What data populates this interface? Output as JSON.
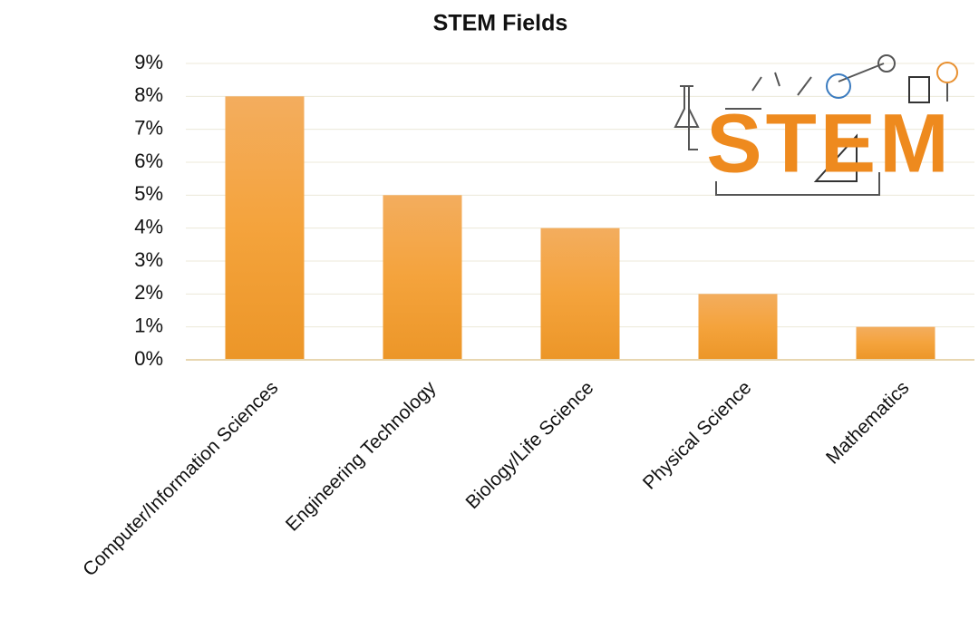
{
  "chart_data": {
    "type": "bar",
    "title": "STEM Fields",
    "categories": [
      "Computer/Information Sciences",
      "Engineering Technology",
      "Biology/Life Science",
      "Physical Science",
      "Mathematics"
    ],
    "values": [
      8,
      5,
      4,
      2,
      1
    ],
    "color": "#f0a03a",
    "ylim": [
      0,
      9
    ],
    "yticks": [
      {
        "value": 0,
        "label": "0%"
      },
      {
        "value": 1,
        "label": "1%"
      },
      {
        "value": 2,
        "label": "2%"
      },
      {
        "value": 3,
        "label": "3%"
      },
      {
        "value": 4,
        "label": "4%"
      },
      {
        "value": 5,
        "label": "5%"
      },
      {
        "value": 6,
        "label": "6%"
      },
      {
        "value": 7,
        "label": "7%"
      },
      {
        "value": 8,
        "label": "8%"
      },
      {
        "value": 9,
        "label": "9%"
      }
    ],
    "grid": true,
    "image_text": "STEM"
  }
}
